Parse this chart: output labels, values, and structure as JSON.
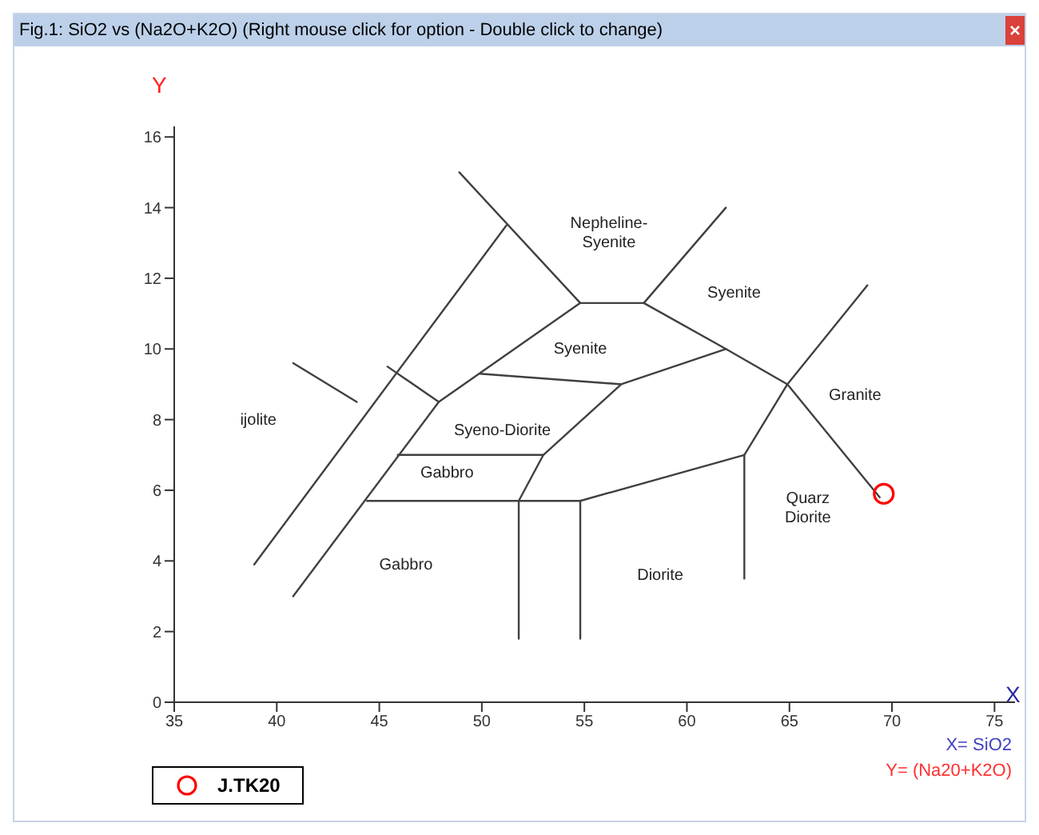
{
  "chart_data": {
    "type": "scatter",
    "title": "Fig.1: SiO2 vs (Na2O+K2O) (Right mouse click for option - Double click to change)",
    "xlabel": "X",
    "ylabel": "Y",
    "xlim": [
      35,
      76
    ],
    "xticks": [
      35,
      40,
      45,
      50,
      55,
      60,
      65,
      70,
      75
    ],
    "ylim": [
      0,
      16.3
    ],
    "yticks": [
      0,
      2,
      4,
      6,
      8,
      10,
      12,
      14,
      16
    ],
    "grid": false,
    "legend": "bottom left",
    "series": [
      {
        "type": "line",
        "color": "#404040",
        "x": [
          38.9,
          51.2
        ],
        "values": [
          3.9,
          13.5
        ]
      },
      {
        "type": "line",
        "color": "#404040",
        "x": [
          40.8,
          43.9
        ],
        "values": [
          9.6,
          8.5
        ]
      },
      {
        "type": "line",
        "color": "#404040",
        "x": [
          40.8,
          47.9,
          54.8
        ],
        "values": [
          3.0,
          8.5,
          11.3
        ]
      },
      {
        "type": "line",
        "color": "#404040",
        "x": [
          45.4,
          47.9
        ],
        "values": [
          9.5,
          8.5
        ]
      },
      {
        "type": "line",
        "color": "#404040",
        "x": [
          48.9,
          54.8
        ],
        "values": [
          15.0,
          11.3
        ]
      },
      {
        "type": "line",
        "color": "#404040",
        "x": [
          54.8,
          57.9
        ],
        "values": [
          11.3,
          11.3
        ]
      },
      {
        "type": "line",
        "color": "#404040",
        "x": [
          57.9,
          61.9
        ],
        "values": [
          11.3,
          14.0
        ]
      },
      {
        "type": "line",
        "color": "#404040",
        "x": [
          57.9,
          61.9,
          64.9,
          69.4
        ],
        "values": [
          11.3,
          10.0,
          9.0,
          5.8
        ]
      },
      {
        "type": "line",
        "color": "#404040",
        "x": [
          49.9,
          56.8,
          61.9
        ],
        "values": [
          9.3,
          9.0,
          10.0
        ]
      },
      {
        "type": "line",
        "color": "#404040",
        "x": [
          56.8,
          53.0,
          51.8
        ],
        "values": [
          9.0,
          7.0,
          5.7
        ]
      },
      {
        "type": "line",
        "color": "#404040",
        "x": [
          45.9,
          53.0
        ],
        "values": [
          7.0,
          7.0
        ]
      },
      {
        "type": "line",
        "color": "#404040",
        "x": [
          44.4,
          54.8,
          62.8,
          64.9,
          68.8
        ],
        "values": [
          5.7,
          5.7,
          7.0,
          9.0,
          11.8
        ]
      },
      {
        "type": "line",
        "color": "#404040",
        "x": [
          51.8,
          51.8
        ],
        "values": [
          5.7,
          1.8
        ]
      },
      {
        "type": "line",
        "color": "#404040",
        "x": [
          54.8,
          54.8
        ],
        "values": [
          5.7,
          1.8
        ]
      },
      {
        "type": "line",
        "color": "#404040",
        "x": [
          62.8,
          62.8
        ],
        "values": [
          7.0,
          3.5
        ]
      },
      {
        "name": "J.TK20",
        "color": "#ff0000",
        "marker": "circle",
        "x": [
          69.6
        ],
        "values": [
          5.9
        ]
      }
    ],
    "annotations": [
      "Nepheline-Syenite",
      "Syenite",
      "Syenite",
      "Granite",
      "ijolite",
      "Syeno-Diorite",
      "Gabbro",
      "Quarz Diorite",
      "Gabbro",
      "Diorite",
      "X= SiO2",
      "Y= (Na20+K2O)"
    ]
  }
}
